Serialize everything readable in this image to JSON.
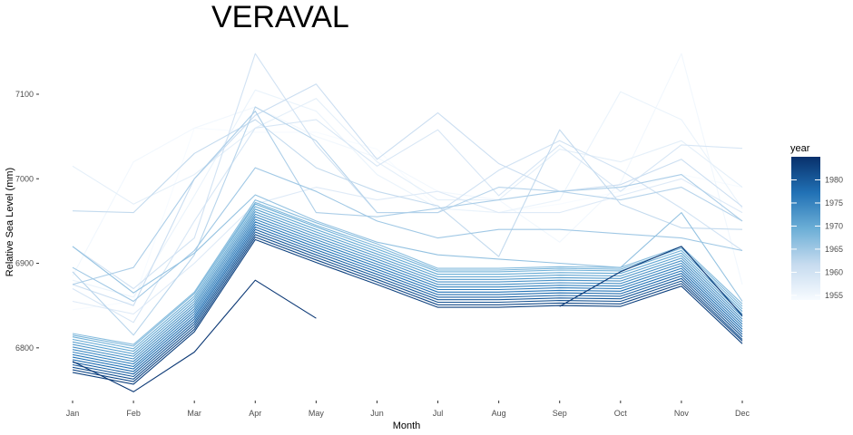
{
  "chart_data": {
    "type": "line",
    "title": "VERAVAL",
    "xlabel": "Month",
    "ylabel": "Relative Sea Level (mm)",
    "categories": [
      "Jan",
      "Feb",
      "Mar",
      "Apr",
      "May",
      "Jun",
      "Jul",
      "Aug",
      "Sep",
      "Oct",
      "Nov",
      "Dec"
    ],
    "y_ticks": [
      6800,
      6900,
      7000,
      7100
    ],
    "ylim": [
      6743,
      7160
    ],
    "legend": {
      "title": "year",
      "position": "right",
      "ticks": [
        1955,
        1960,
        1965,
        1970,
        1975,
        1980
      ],
      "range": [
        1954,
        1985
      ],
      "color_low": "#f7fbff",
      "color_high": "#08306b"
    },
    "series": [
      {
        "year": 1954,
        "values": [
          6845,
          6855,
          7060,
          7055,
          7055,
          7035,
          6965,
          6960,
          6970,
          6985,
          7005,
          6990
        ]
      },
      {
        "year": 1955,
        "values": [
          6885,
          7020,
          7060,
          7085,
          7050,
          7025,
          6985,
          6975,
          6925,
          6995,
          7148,
          6875
        ]
      },
      {
        "year": 1956,
        "values": [
          6880,
          6860,
          6980,
          7105,
          7080,
          7005,
          6965,
          6960,
          6975,
          7103,
          7070,
          6965
        ]
      },
      {
        "year": 1957,
        "values": [
          7015,
          6970,
          7005,
          7060,
          7095,
          7020,
          6975,
          6975,
          7035,
          7020,
          7045,
          6990
        ]
      },
      {
        "year": 1958,
        "values": [
          6855,
          6840,
          6900,
          6970,
          6990,
          6975,
          6985,
          6960,
          6960,
          6980,
          7000,
          6960
        ]
      },
      {
        "year": 1959,
        "values": [
          6870,
          6830,
          6950,
          7060,
          7070,
          7015,
          7058,
          6980,
          7040,
          6985,
          7040,
          7036
        ]
      },
      {
        "year": 1960,
        "values": [
          6920,
          6870,
          6930,
          7148,
          7040,
          6960,
          6960,
          7010,
          7045,
          7010,
          6965,
          6915
        ]
      },
      {
        "year": 1961,
        "values": [
          6875,
          6850,
          7000,
          7075,
          7112,
          7023,
          7078,
          7018,
          6985,
          6993,
          7023,
          6967
        ]
      },
      {
        "year": 1962,
        "values": [
          6962,
          6960,
          7030,
          7070,
          7013,
          6985,
          6968,
          6908,
          7058,
          6970,
          6942,
          6940
        ]
      },
      {
        "year": 1963,
        "values": [
          6890,
          6815,
          6910,
          7085,
          7045,
          6960,
          6960,
          6990,
          6985,
          6975,
          6990,
          6950
        ]
      },
      {
        "year": 1964,
        "values": [
          6875,
          6895,
          7000,
          7080,
          6960,
          6955,
          6965,
          6975,
          6985,
          6990,
          7005,
          6950
        ]
      },
      {
        "year": 1965,
        "values": [
          6895,
          6855,
          6915,
          7013,
          6985,
          6950,
          6930,
          6940,
          6940,
          6935,
          6930,
          6915
        ]
      },
      {
        "year": 1966,
        "values": [
          6920,
          6865,
          6912,
          6981,
          6950,
          6925,
          6910,
          6905,
          6900,
          6895,
          6960,
          6855
        ]
      },
      {
        "year": 1967,
        "values": [
          6817,
          6804,
          6866,
          6975,
          6948,
          6923,
          6894,
          6894,
          6896,
          6895,
          6920,
          6852
        ]
      },
      {
        "year": 1968,
        "values": [
          6815,
          6802,
          6864,
          6972,
          6945,
          6920,
          6892,
          6892,
          6894,
          6893,
          6918,
          6849
        ]
      },
      {
        "year": 1969,
        "values": [
          6813,
          6799,
          6861,
          6970,
          6943,
          6917,
          6890,
          6890,
          6892,
          6891,
          6915,
          6846
        ]
      },
      {
        "year": 1970,
        "values": [
          6810,
          6796,
          6858,
          6967,
          6940,
          6914,
          6887,
          6887,
          6889,
          6888,
          6912,
          6843
        ]
      },
      {
        "year": 1971,
        "values": [
          6807,
          6793,
          6855,
          6964,
          6937,
          6911,
          6884,
          6884,
          6886,
          6885,
          6909,
          6840
        ]
      },
      {
        "year": 1972,
        "values": [
          6804,
          6790,
          6852,
          6961,
          6934,
          6908,
          6881,
          6881,
          6883,
          6882,
          6906,
          6837
        ]
      },
      {
        "year": 1973,
        "values": [
          6801,
          6787,
          6849,
          6958,
          6931,
          6905,
          6878,
          6878,
          6880,
          6879,
          6903,
          6834
        ]
      },
      {
        "year": 1974,
        "values": [
          6798,
          6784,
          6846,
          6955,
          6928,
          6902,
          6875,
          6875,
          6877,
          6876,
          6900,
          6831
        ]
      },
      {
        "year": 1975,
        "values": [
          6795,
          6781,
          6843,
          6952,
          6925,
          6899,
          6872,
          6872,
          6874,
          6873,
          6897,
          6828
        ]
      },
      {
        "year": 1976,
        "values": [
          6792,
          6778,
          6840,
          6949,
          6922,
          6896,
          6869,
          6869,
          6871,
          6870,
          6894,
          6825
        ]
      },
      {
        "year": 1977,
        "values": [
          6789,
          6775,
          6837,
          6946,
          6919,
          6893,
          6866,
          6866,
          6868,
          6867,
          6891,
          6822
        ]
      },
      {
        "year": 1978,
        "values": [
          6786,
          6772,
          6834,
          6943,
          6916,
          6890,
          6863,
          6863,
          6865,
          6864,
          6888,
          6819
        ]
      },
      {
        "year": 1979,
        "values": [
          6783,
          6769,
          6831,
          6940,
          6913,
          6887,
          6860,
          6860,
          6862,
          6861,
          6885,
          6816
        ]
      },
      {
        "year": 1980,
        "values": [
          6780,
          6766,
          6828,
          6937,
          6910,
          6884,
          6857,
          6857,
          6859,
          6858,
          6882,
          6813
        ]
      },
      {
        "year": 1981,
        "values": [
          6777,
          6763,
          6825,
          6934,
          6907,
          6881,
          6854,
          6854,
          6856,
          6855,
          6879,
          6810
        ]
      },
      {
        "year": 1982,
        "values": [
          6774,
          6760,
          6822,
          6931,
          6904,
          6878,
          6851,
          6851,
          6853,
          6852,
          6876,
          6808
        ]
      },
      {
        "year": 1983,
        "values": [
          6771,
          6757,
          6819,
          6928,
          6901,
          6875,
          6848,
          6848,
          6850,
          6849,
          6873,
          6805
        ]
      },
      {
        "year": 1984,
        "values": [
          6784,
          6748,
          6795,
          6880,
          6835,
          null,
          null,
          null,
          6849,
          6890,
          6920,
          6838
        ]
      }
    ]
  }
}
